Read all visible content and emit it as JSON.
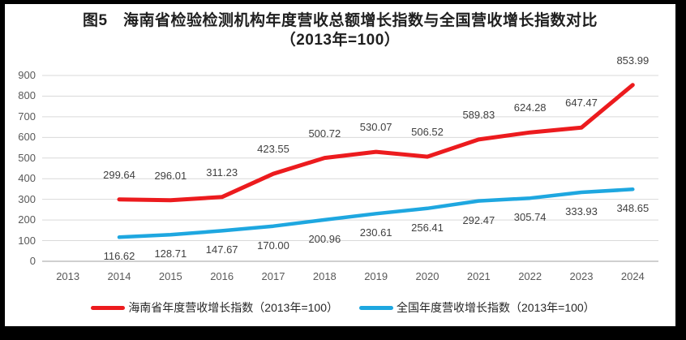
{
  "title": {
    "line1": "图5　海南省检验检测机构年度营收总额增长指数与全国营收增长指数对比",
    "line2": "（2013年=100）"
  },
  "chart_data": {
    "type": "line",
    "categories": [
      "2013",
      "2014",
      "2015",
      "2016",
      "2017",
      "2018",
      "2019",
      "2020",
      "2021",
      "2022",
      "2023",
      "2024"
    ],
    "series": [
      {
        "name": "海南省年度营收增长指数（2013年=100）",
        "color": "#ec1b1e",
        "values": [
          null,
          299.64,
          296.01,
          311.23,
          423.55,
          500.72,
          530.07,
          506.52,
          589.83,
          624.28,
          647.47,
          853.99
        ],
        "labels": [
          "",
          "299.64",
          "296.01",
          "311.23",
          "423.55",
          "500.72",
          "530.07",
          "506.52",
          "589.83",
          "624.28",
          "647.47",
          "853.99"
        ],
        "label_position": "above",
        "stroke_width": 5
      },
      {
        "name": "全国年度营收增长指数（2013年=100）",
        "color": "#1ea7e0",
        "values": [
          null,
          116.62,
          128.71,
          147.67,
          170,
          200.96,
          230.61,
          256.41,
          292.47,
          305.74,
          333.93,
          348.65
        ],
        "labels": [
          "",
          "116.62",
          "128.71",
          "147.67",
          "170.00",
          "200.96",
          "230.61",
          "256.41",
          "292.47",
          "305.74",
          "333.93",
          "348.65"
        ],
        "label_position": "below",
        "stroke_width": 4.5
      }
    ],
    "y_axis": {
      "min": 0,
      "max": 900,
      "step": 100,
      "ticks": [
        "0",
        "100",
        "200",
        "300",
        "400",
        "500",
        "600",
        "700",
        "800",
        "900"
      ]
    },
    "x_axis": {
      "ticks": [
        "2013",
        "2014",
        "2015",
        "2016",
        "2017",
        "2018",
        "2019",
        "2020",
        "2021",
        "2022",
        "2023",
        "2024"
      ]
    },
    "grid": true,
    "legend_position": "bottom"
  },
  "colors": {
    "frame": "#000000",
    "background": "#ffffff",
    "gridline": "#d9d9d9",
    "axis_line": "#bfbfbf",
    "tick_text": "#595959",
    "data_label_text": "#404040",
    "title_text": "#1f1f1f"
  }
}
